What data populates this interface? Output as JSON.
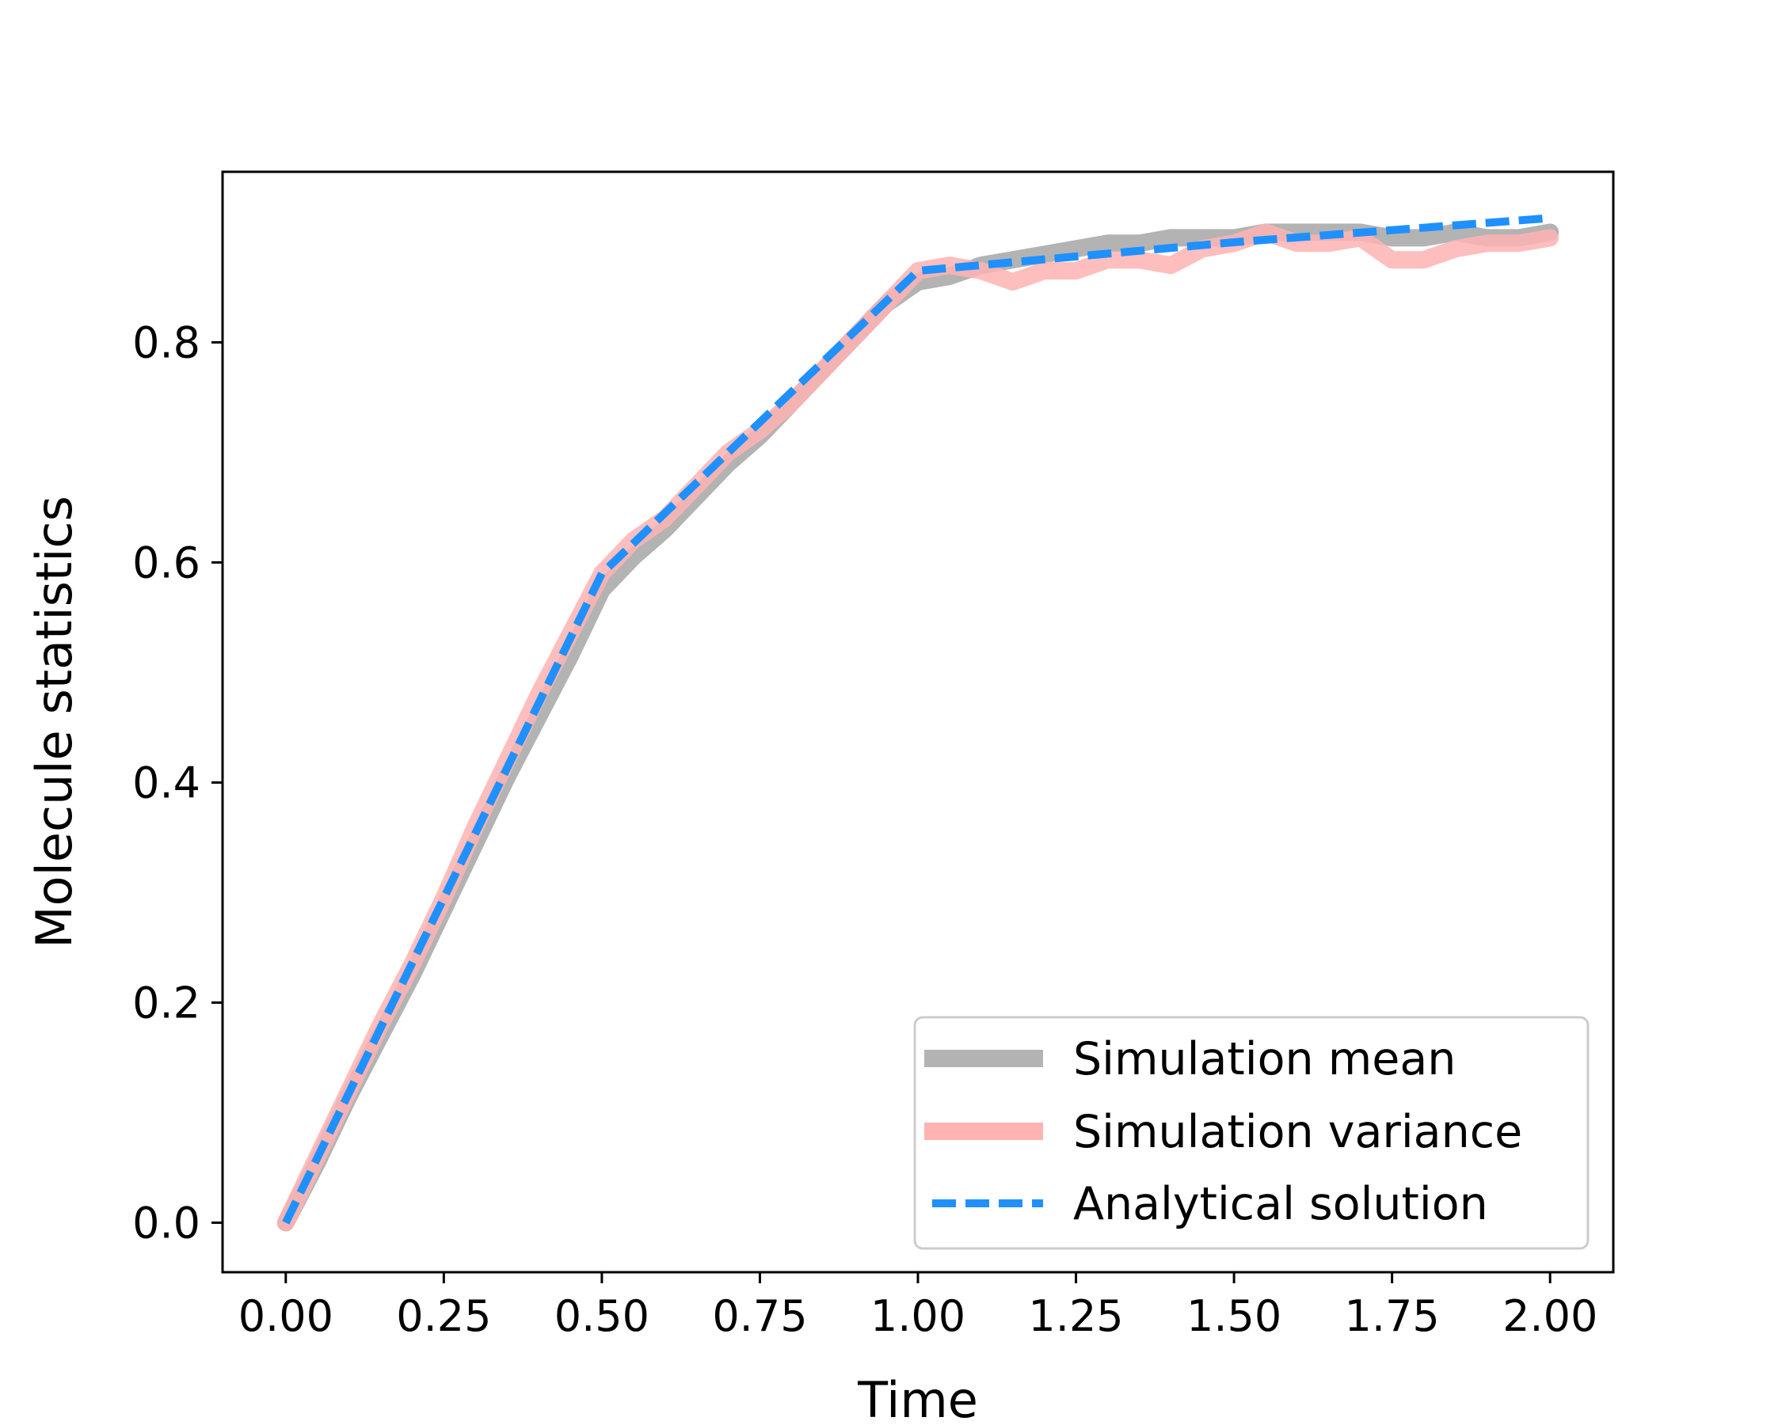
{
  "chart_data": {
    "type": "line",
    "title": "",
    "xlabel": "Time",
    "ylabel": "Molecule statistics",
    "xlim": [
      -0.1,
      2.1
    ],
    "ylim": [
      -0.045,
      0.955
    ],
    "x_ticks": [
      0.0,
      0.25,
      0.5,
      0.75,
      1.0,
      1.25,
      1.5,
      1.75,
      2.0
    ],
    "x_tick_labels": [
      "0.00",
      "0.25",
      "0.50",
      "0.75",
      "1.00",
      "1.25",
      "1.50",
      "1.75",
      "2.00"
    ],
    "y_ticks": [
      0.0,
      0.2,
      0.4,
      0.6,
      0.8
    ],
    "y_tick_labels": [
      "0.0",
      "0.2",
      "0.4",
      "0.6",
      "0.8"
    ],
    "grid": false,
    "legend_position": "lower-right",
    "series": [
      {
        "name": "Simulation mean",
        "color": "#b3b3b3",
        "style": "solid-thick",
        "x": [
          0.0,
          0.05,
          0.1,
          0.15,
          0.2,
          0.25,
          0.3,
          0.35,
          0.4,
          0.45,
          0.5,
          0.55,
          0.6,
          0.65,
          0.7,
          0.75,
          0.8,
          0.85,
          0.9,
          0.95,
          1.0,
          1.05,
          1.1,
          1.15,
          1.2,
          1.25,
          1.3,
          1.35,
          1.4,
          1.45,
          1.5,
          1.55,
          1.6,
          1.65,
          1.7,
          1.75,
          1.8,
          1.85,
          1.9,
          1.95,
          2.0
        ],
        "values": [
          0.0,
          0.055,
          0.115,
          0.17,
          0.225,
          0.285,
          0.345,
          0.405,
          0.46,
          0.515,
          0.575,
          0.605,
          0.63,
          0.66,
          0.69,
          0.715,
          0.745,
          0.775,
          0.805,
          0.835,
          0.855,
          0.86,
          0.87,
          0.875,
          0.88,
          0.885,
          0.89,
          0.89,
          0.895,
          0.895,
          0.895,
          0.9,
          0.9,
          0.9,
          0.9,
          0.895,
          0.895,
          0.9,
          0.895,
          0.895,
          0.9
        ]
      },
      {
        "name": "Simulation variance",
        "color": "#ffb3b3",
        "style": "solid-thick",
        "x": [
          0.0,
          0.05,
          0.1,
          0.15,
          0.2,
          0.25,
          0.3,
          0.35,
          0.4,
          0.45,
          0.5,
          0.55,
          0.6,
          0.65,
          0.7,
          0.75,
          0.8,
          0.85,
          0.9,
          0.95,
          1.0,
          1.05,
          1.1,
          1.15,
          1.2,
          1.25,
          1.3,
          1.35,
          1.4,
          1.45,
          1.5,
          1.55,
          1.6,
          1.65,
          1.7,
          1.75,
          1.8,
          1.85,
          1.9,
          1.95,
          2.0
        ],
        "values": [
          0.0,
          0.06,
          0.12,
          0.18,
          0.235,
          0.295,
          0.36,
          0.42,
          0.48,
          0.535,
          0.59,
          0.62,
          0.64,
          0.67,
          0.7,
          0.72,
          0.745,
          0.775,
          0.805,
          0.835,
          0.865,
          0.87,
          0.865,
          0.855,
          0.865,
          0.865,
          0.875,
          0.875,
          0.87,
          0.885,
          0.89,
          0.9,
          0.89,
          0.89,
          0.895,
          0.875,
          0.875,
          0.885,
          0.89,
          0.89,
          0.895
        ]
      },
      {
        "name": "Analytical solution",
        "color": "#1e90ff",
        "style": "dashed",
        "x": [
          0.0,
          0.5,
          1.0,
          1.25,
          1.5,
          1.75,
          2.0
        ],
        "values": [
          0.0,
          0.59,
          0.865,
          0.878,
          0.891,
          0.902,
          0.913
        ]
      }
    ]
  }
}
